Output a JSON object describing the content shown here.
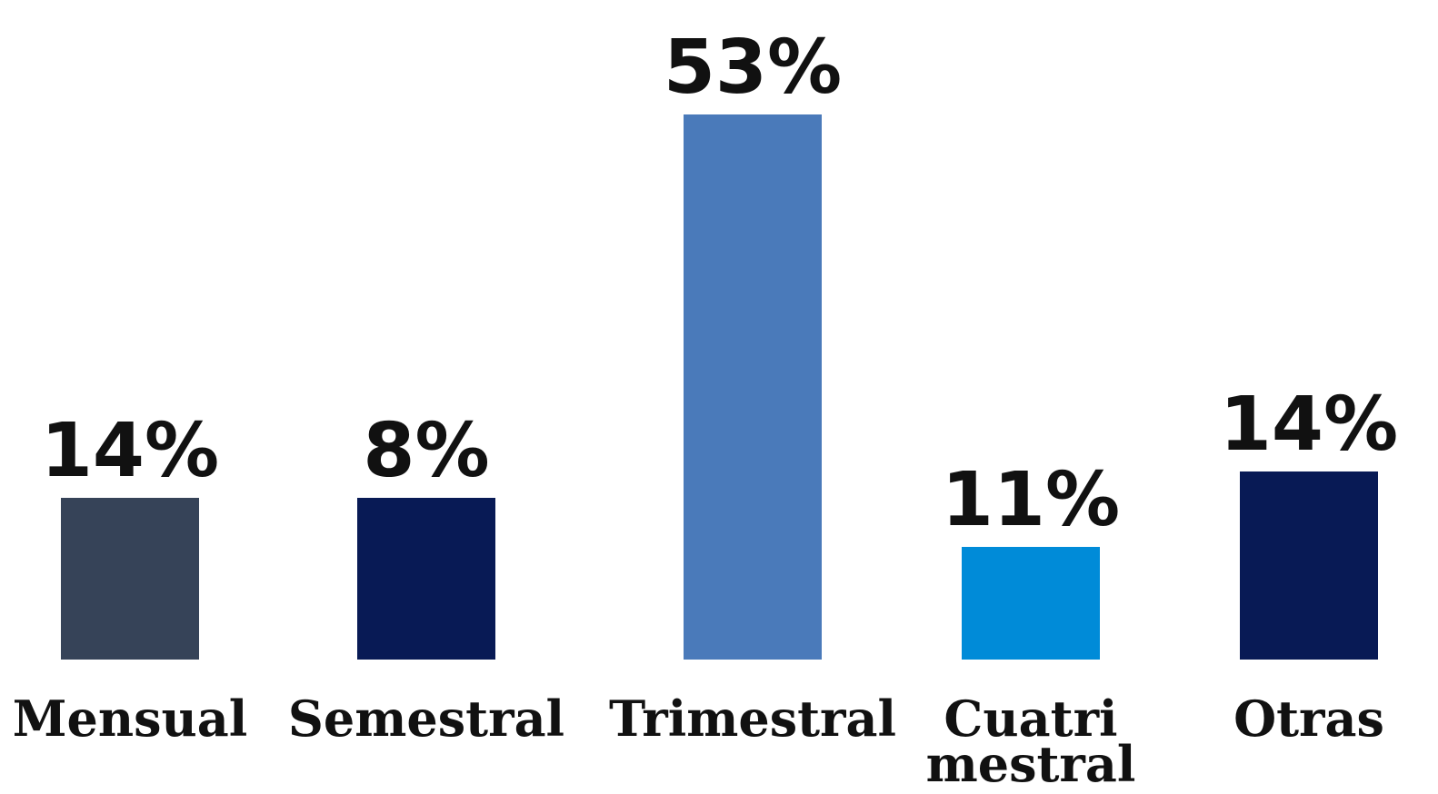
{
  "chart_data": {
    "type": "bar",
    "title": "",
    "xlabel": "",
    "ylabel": "",
    "categories": [
      [
        "Mensual"
      ],
      [
        "Semestral"
      ],
      [
        "Trimestral"
      ],
      [
        "Cuatri",
        "mestral"
      ],
      [
        "Otras"
      ]
    ],
    "values": [
      14,
      8,
      53,
      11,
      14
    ],
    "value_labels": [
      "14%",
      "8%",
      "53%",
      "11%",
      "14%"
    ],
    "colors": [
      "#364358",
      "#081a55",
      "#4a7aba",
      "#008bd8",
      "#081a55"
    ],
    "grid": false,
    "legend": "none"
  }
}
